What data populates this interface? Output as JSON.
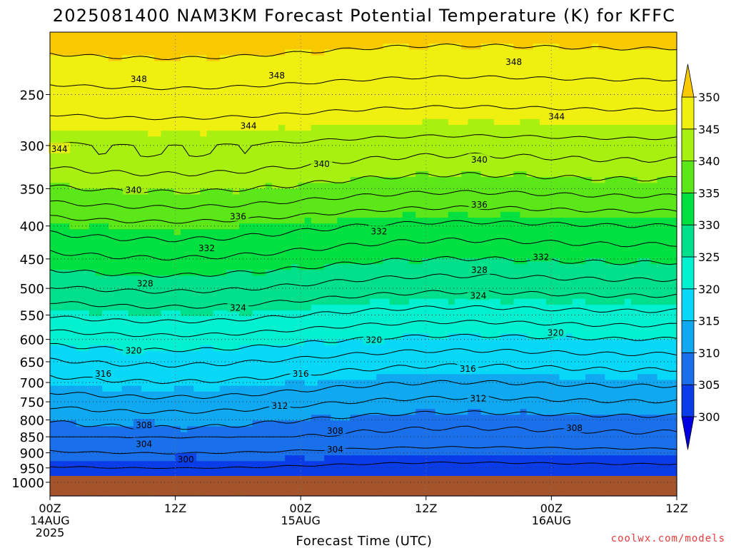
{
  "chart_data": {
    "type": "heatmap",
    "title": "2025081400 NAM3KM Forecast Potential Temperature (K) for KFFC",
    "xlabel": "Forecast Time (UTC)",
    "ylabel": "",
    "x_ticks": [
      {
        "hour": 0,
        "lines": [
          "00Z",
          "14AUG",
          "2025"
        ]
      },
      {
        "hour": 12,
        "lines": [
          "12Z"
        ]
      },
      {
        "hour": 24,
        "lines": [
          "00Z",
          "15AUG"
        ]
      },
      {
        "hour": 36,
        "lines": [
          "12Z"
        ]
      },
      {
        "hour": 48,
        "lines": [
          "00Z",
          "16AUG"
        ]
      },
      {
        "hour": 60,
        "lines": [
          "12Z"
        ]
      }
    ],
    "xlim": [
      0,
      60
    ],
    "y_ticks": [
      250,
      300,
      350,
      400,
      450,
      500,
      550,
      600,
      650,
      700,
      750,
      800,
      850,
      900,
      950,
      1000
    ],
    "ylim": [
      200,
      1050
    ],
    "y_scale": "log, reversed (pressure hPa)",
    "grid": "dotted",
    "colorbar": {
      "levels": [
        300,
        305,
        310,
        315,
        320,
        325,
        330,
        335,
        340,
        345,
        350
      ],
      "colors": [
        "#0000e0",
        "#0a3ce8",
        "#1970ea",
        "#10a8f0",
        "#08d8f8",
        "#00f0d0",
        "#00e08a",
        "#00e040",
        "#5ce818",
        "#a8f010",
        "#f0f010",
        "#f8c800"
      ],
      "position": "right"
    },
    "contour_labels": [
      {
        "value": 348,
        "hour": 8.5,
        "p": 236
      },
      {
        "value": 348,
        "hour": 21.7,
        "p": 233
      },
      {
        "value": 348,
        "hour": 44.4,
        "p": 222
      },
      {
        "value": 344,
        "hour": 0.9,
        "p": 303
      },
      {
        "value": 344,
        "hour": 19.0,
        "p": 279
      },
      {
        "value": 344,
        "hour": 48.5,
        "p": 270
      },
      {
        "value": 340,
        "hour": 8.0,
        "p": 351
      },
      {
        "value": 340,
        "hour": 26.0,
        "p": 320
      },
      {
        "value": 340,
        "hour": 41.1,
        "p": 315
      },
      {
        "value": 336,
        "hour": 18.0,
        "p": 386
      },
      {
        "value": 336,
        "hour": 41.1,
        "p": 370
      },
      {
        "value": 332,
        "hour": 15.0,
        "p": 432
      },
      {
        "value": 332,
        "hour": 31.5,
        "p": 407
      },
      {
        "value": 332,
        "hour": 47.0,
        "p": 446
      },
      {
        "value": 328,
        "hour": 9.1,
        "p": 490
      },
      {
        "value": 328,
        "hour": 41.1,
        "p": 467
      },
      {
        "value": 324,
        "hour": 18.0,
        "p": 535
      },
      {
        "value": 324,
        "hour": 41.0,
        "p": 512
      },
      {
        "value": 320,
        "hour": 8.0,
        "p": 623
      },
      {
        "value": 320,
        "hour": 31.0,
        "p": 600
      },
      {
        "value": 320,
        "hour": 48.4,
        "p": 585
      },
      {
        "value": 316,
        "hour": 5.1,
        "p": 677
      },
      {
        "value": 316,
        "hour": 24.0,
        "p": 677
      },
      {
        "value": 316,
        "hour": 40.0,
        "p": 665
      },
      {
        "value": 312,
        "hour": 22.0,
        "p": 759
      },
      {
        "value": 312,
        "hour": 41.0,
        "p": 739
      },
      {
        "value": 308,
        "hour": 9.0,
        "p": 814
      },
      {
        "value": 308,
        "hour": 27.3,
        "p": 830
      },
      {
        "value": 308,
        "hour": 50.2,
        "p": 822
      },
      {
        "value": 304,
        "hour": 9.0,
        "p": 870
      },
      {
        "value": 304,
        "hour": 27.3,
        "p": 887
      },
      {
        "value": 300,
        "hour": 13.0,
        "p": 920
      }
    ],
    "credit": "coolwx.com/models"
  }
}
